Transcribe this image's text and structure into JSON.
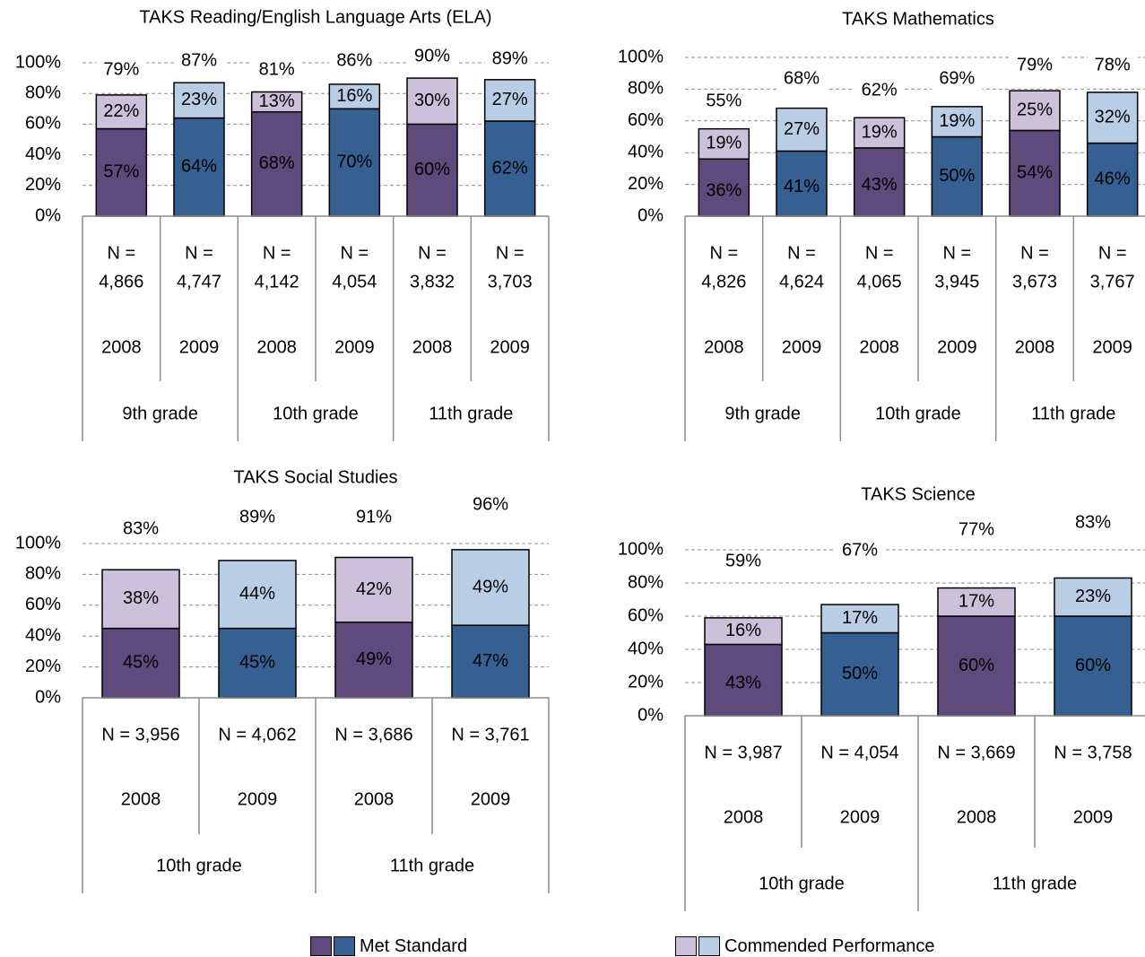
{
  "colors": {
    "met_2008": "#5f4a7d",
    "met_2009": "#376092",
    "commended_2008": "#ccc1da",
    "commended_2009": "#b9cde5"
  },
  "legend": {
    "met_label": "Met Standard",
    "commended_label": "Commended Performance"
  },
  "chart_data": [
    {
      "type": "bar",
      "stacked": true,
      "title": "TAKS Reading/English Language Arts (ELA)",
      "ylim": [
        0,
        100
      ],
      "yticks": [
        "0%",
        "20%",
        "40%",
        "60%",
        "80%",
        "100%"
      ],
      "grid": true,
      "categories": [
        {
          "n": "N =\n4,866",
          "year": "2008",
          "grade": "9th grade"
        },
        {
          "n": "N =\n4,747",
          "year": "2009",
          "grade": "9th grade"
        },
        {
          "n": "N =\n4,142",
          "year": "2008",
          "grade": "10th grade"
        },
        {
          "n": "N =\n4,054",
          "year": "2009",
          "grade": "10th grade"
        },
        {
          "n": "N =\n3,832",
          "year": "2008",
          "grade": "11th grade"
        },
        {
          "n": "N =\n3,703",
          "year": "2009",
          "grade": "11th grade"
        }
      ],
      "grades": [
        "9th grade",
        "10th grade",
        "11th grade"
      ],
      "series": [
        {
          "name": "Met Standard",
          "values": [
            57,
            64,
            68,
            70,
            60,
            62
          ],
          "labels": [
            "57%",
            "64%",
            "68%",
            "70%",
            "60%",
            "62%"
          ]
        },
        {
          "name": "Commended Performance",
          "values": [
            22,
            23,
            13,
            16,
            30,
            27
          ],
          "labels": [
            "22%",
            "23%",
            "13%",
            "16%",
            "30%",
            "27%"
          ]
        }
      ],
      "totals": [
        "79%",
        "87%",
        "81%",
        "86%",
        "90%",
        "89%"
      ]
    },
    {
      "type": "bar",
      "stacked": true,
      "title": "TAKS Mathematics",
      "ylim": [
        0,
        100
      ],
      "yticks": [
        "0%",
        "20%",
        "40%",
        "60%",
        "80%",
        "100%"
      ],
      "grid": true,
      "categories": [
        {
          "n": "N =\n4,826",
          "year": "2008",
          "grade": "9th grade"
        },
        {
          "n": "N =\n4,624",
          "year": "2009",
          "grade": "9th grade"
        },
        {
          "n": "N =\n4,065",
          "year": "2008",
          "grade": "10th grade"
        },
        {
          "n": "N =\n3,945",
          "year": "2009",
          "grade": "10th grade"
        },
        {
          "n": "N =\n3,673",
          "year": "2008",
          "grade": "11th grade"
        },
        {
          "n": "N =\n3,767",
          "year": "2009",
          "grade": "11th grade"
        }
      ],
      "grades": [
        "9th grade",
        "10th grade",
        "11th grade"
      ],
      "series": [
        {
          "name": "Met Standard",
          "values": [
            36,
            41,
            43,
            50,
            54,
            46
          ],
          "labels": [
            "36%",
            "41%",
            "43%",
            "50%",
            "54%",
            "46%"
          ]
        },
        {
          "name": "Commended Performance",
          "values": [
            19,
            27,
            19,
            19,
            25,
            32
          ],
          "labels": [
            "19%",
            "27%",
            "19%",
            "19%",
            "25%",
            "32%"
          ]
        }
      ],
      "totals": [
        "55%",
        "68%",
        "62%",
        "69%",
        "79%",
        "78%"
      ]
    },
    {
      "type": "bar",
      "stacked": true,
      "title": "TAKS Social Studies",
      "ylim": [
        0,
        100
      ],
      "yticks": [
        "0%",
        "20%",
        "40%",
        "60%",
        "80%",
        "100%"
      ],
      "grid": true,
      "categories": [
        {
          "n": "N = 3,956",
          "year": "2008",
          "grade": "10th grade"
        },
        {
          "n": "N = 4,062",
          "year": "2009",
          "grade": "10th grade"
        },
        {
          "n": "N = 3,686",
          "year": "2008",
          "grade": "11th grade"
        },
        {
          "n": "N = 3,761",
          "year": "2009",
          "grade": "11th grade"
        }
      ],
      "grades": [
        "10th grade",
        "11th grade"
      ],
      "series": [
        {
          "name": "Met Standard",
          "values": [
            45,
            45,
            49,
            47
          ],
          "labels": [
            "45%",
            "45%",
            "49%",
            "47%"
          ]
        },
        {
          "name": "Commended Performance",
          "values": [
            38,
            44,
            42,
            49
          ],
          "labels": [
            "38%",
            "44%",
            "42%",
            "49%"
          ]
        }
      ],
      "totals": [
        "83%",
        "89%",
        "91%",
        "96%"
      ]
    },
    {
      "type": "bar",
      "stacked": true,
      "title": "TAKS Science",
      "ylim": [
        0,
        100
      ],
      "yticks": [
        "0%",
        "20%",
        "40%",
        "60%",
        "80%",
        "100%"
      ],
      "grid": true,
      "categories": [
        {
          "n": "N = 3,987",
          "year": "2008",
          "grade": "10th grade"
        },
        {
          "n": "N = 4,054",
          "year": "2009",
          "grade": "10th grade"
        },
        {
          "n": "N = 3,669",
          "year": "2008",
          "grade": "11th grade"
        },
        {
          "n": "N = 3,758",
          "year": "2009",
          "grade": "11th grade"
        }
      ],
      "grades": [
        "10th grade",
        "11th grade"
      ],
      "series": [
        {
          "name": "Met Standard",
          "values": [
            43,
            50,
            60,
            60
          ],
          "labels": [
            "43%",
            "50%",
            "60%",
            "60%"
          ]
        },
        {
          "name": "Commended Performance",
          "values": [
            16,
            17,
            17,
            23
          ],
          "labels": [
            "16%",
            "17%",
            "17%",
            "23%"
          ]
        }
      ],
      "totals": [
        "59%",
        "67%",
        "77%",
        "83%"
      ]
    }
  ]
}
